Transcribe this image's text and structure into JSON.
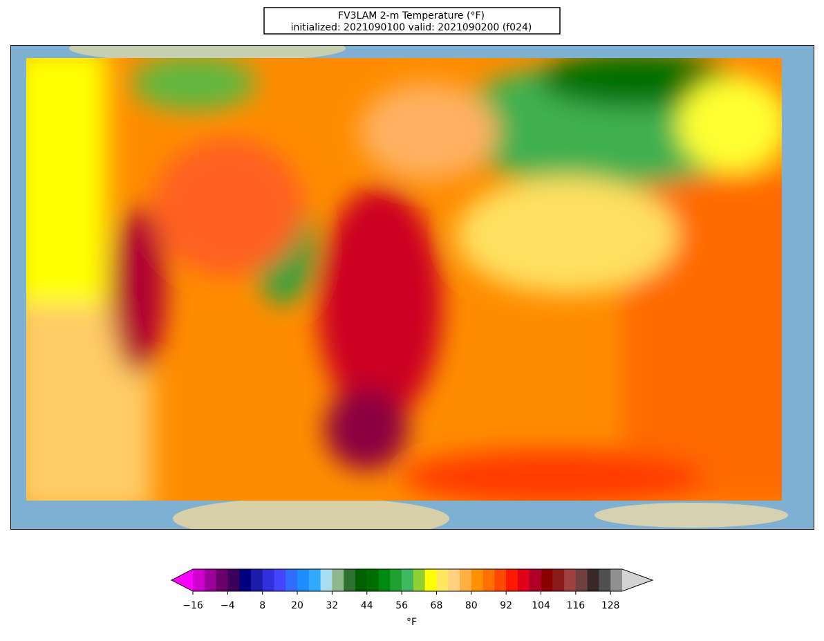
{
  "title": {
    "line1": "FV3LAM 2-m Temperature (°F)",
    "line2": "initialized: 2021090100 valid: 2021090200 (f024)"
  },
  "colorbar": {
    "label": "°F",
    "clim": [
      -16,
      132
    ],
    "extend": "both",
    "ticks": [
      {
        "value": -16,
        "label": "−16"
      },
      {
        "value": -4,
        "label": "−4"
      },
      8,
      20,
      32,
      44,
      56,
      68,
      80,
      92,
      104,
      116,
      128
    ],
    "colors": [
      "#ff00ff",
      "#d000d0",
      "#9a009a",
      "#6a006a",
      "#3c005a",
      "#000080",
      "#1c1caa",
      "#3030dd",
      "#4444ff",
      "#2f6cff",
      "#1e8cff",
      "#30aaff",
      "#a8dcf0",
      "#8fb88f",
      "#2e7030",
      "#006000",
      "#006e00",
      "#00880f",
      "#20a030",
      "#40b860",
      "#90d030",
      "#ffff00",
      "#ffe860",
      "#ffd080",
      "#ffb040",
      "#ff9000",
      "#ff7000",
      "#ff4800",
      "#ff1800",
      "#dd0018",
      "#b00028",
      "#8b0000",
      "#8b1a1a",
      "#a04040",
      "#704040",
      "#382828",
      "#505050",
      "#909090",
      "#d3d3d3"
    ]
  }
}
